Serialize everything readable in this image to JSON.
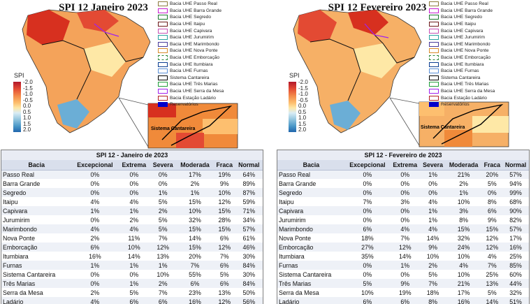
{
  "legend_items": [
    {
      "label": "Bacia UHE Passo Real",
      "color": "#8c7a3d"
    },
    {
      "label": "Bacia UHE Barra Grande",
      "color": "#c71ccf"
    },
    {
      "label": "Bacia UHE Segredo",
      "color": "#1b7a2f"
    },
    {
      "label": "Bacia UHE Itaipu",
      "color": "#6d1a1a"
    },
    {
      "label": "Bacia UHE Capivara",
      "color": "#c64fb4"
    },
    {
      "label": "Bacia UHE Jurumirim",
      "color": "#2aa3a0"
    },
    {
      "label": "Bacia UHE Marimbondo",
      "color": "#4a3b9a"
    },
    {
      "label": "Bacia UHE Nova Ponte",
      "color": "#d98c2b"
    },
    {
      "label": "Bacia UHE Emborcação",
      "color": "#2c8a3a"
    },
    {
      "label": "Bacia UHE Itumbiara",
      "color": "#0b3d91"
    },
    {
      "label": "Bacia UHE Furnas",
      "color": "#5a8fd6"
    },
    {
      "label": "Sistema Cantareira",
      "color": "#000000"
    },
    {
      "label": "Bacia UHE Três Marias",
      "color": "#1f9e3a"
    },
    {
      "label": "Bacia UHE Serra da Mesa",
      "color": "#a020f0"
    },
    {
      "label": "Bacia Estação Ladário",
      "color": "#b22222"
    },
    {
      "label": "Reservatórios",
      "color": "#0000cc"
    }
  ],
  "spi_scale": {
    "label": "SPI",
    "ticks": [
      "-2.0",
      "-1.5",
      "-1.0",
      "-0.5",
      "0.0",
      "0.5",
      "1.0",
      "1.5",
      "2.0"
    ]
  },
  "inset_label": "Sistema Cantareira",
  "column_headers": [
    "Bacia",
    "Excepcional",
    "Extrema",
    "Severa",
    "Moderada",
    "Fraca",
    "Normal"
  ],
  "panels": [
    {
      "map_title": "SPI 12 Janeiro 2023",
      "table_title": "SPI 12 - Janeiro de 2023",
      "rows": [
        [
          "Passo Real",
          "0%",
          "0%",
          "0%",
          "17%",
          "19%",
          "64%"
        ],
        [
          "Barra Grande",
          "0%",
          "0%",
          "0%",
          "2%",
          "9%",
          "89%"
        ],
        [
          "Segredo",
          "0%",
          "0%",
          "1%",
          "1%",
          "10%",
          "87%"
        ],
        [
          "Itaipu",
          "4%",
          "4%",
          "5%",
          "15%",
          "12%",
          "59%"
        ],
        [
          "Capivara",
          "1%",
          "1%",
          "2%",
          "10%",
          "15%",
          "71%"
        ],
        [
          "Jurumirim",
          "0%",
          "2%",
          "5%",
          "32%",
          "28%",
          "34%"
        ],
        [
          "Marimbondo",
          "4%",
          "4%",
          "5%",
          "15%",
          "15%",
          "57%"
        ],
        [
          "Nova Ponte",
          "2%",
          "11%",
          "7%",
          "14%",
          "6%",
          "61%"
        ],
        [
          "Emborcação",
          "6%",
          "10%",
          "12%",
          "15%",
          "12%",
          "46%"
        ],
        [
          "Itumbiara",
          "16%",
          "14%",
          "13%",
          "20%",
          "7%",
          "30%"
        ],
        [
          "Furnas",
          "1%",
          "1%",
          "1%",
          "7%",
          "6%",
          "84%"
        ],
        [
          "Sistema Cantareira",
          "0%",
          "0%",
          "10%",
          "55%",
          "5%",
          "30%"
        ],
        [
          "Três Marias",
          "0%",
          "1%",
          "2%",
          "6%",
          "6%",
          "84%"
        ],
        [
          "Serra da Mesa",
          "2%",
          "5%",
          "7%",
          "23%",
          "13%",
          "50%"
        ],
        [
          "Ladário",
          "4%",
          "6%",
          "6%",
          "16%",
          "12%",
          "56%"
        ]
      ]
    },
    {
      "map_title": "SPI 12 Fevereiro 2023",
      "table_title": "SPI 12 - Fevereiro de 2023",
      "rows": [
        [
          "Passo Real",
          "0%",
          "0%",
          "1%",
          "21%",
          "20%",
          "57%"
        ],
        [
          "Barra Grande",
          "0%",
          "0%",
          "0%",
          "2%",
          "5%",
          "94%"
        ],
        [
          "Segredo",
          "0%",
          "0%",
          "0%",
          "1%",
          "0%",
          "99%"
        ],
        [
          "Itaipu",
          "7%",
          "3%",
          "4%",
          "10%",
          "8%",
          "68%"
        ],
        [
          "Capivara",
          "0%",
          "0%",
          "1%",
          "3%",
          "6%",
          "90%"
        ],
        [
          "Jurumirim",
          "0%",
          "0%",
          "1%",
          "8%",
          "9%",
          "82%"
        ],
        [
          "Marimbondo",
          "6%",
          "4%",
          "4%",
          "15%",
          "15%",
          "57%"
        ],
        [
          "Nova Ponte",
          "18%",
          "7%",
          "14%",
          "32%",
          "12%",
          "17%"
        ],
        [
          "Emborcação",
          "27%",
          "12%",
          "9%",
          "24%",
          "12%",
          "16%"
        ],
        [
          "Itumbiara",
          "35%",
          "14%",
          "10%",
          "10%",
          "4%",
          "25%"
        ],
        [
          "Furnas",
          "0%",
          "1%",
          "2%",
          "4%",
          "7%",
          "85%"
        ],
        [
          "Sistema Cantareira",
          "0%",
          "0%",
          "5%",
          "10%",
          "25%",
          "60%"
        ],
        [
          "Três Marias",
          "5%",
          "9%",
          "7%",
          "21%",
          "13%",
          "44%"
        ],
        [
          "Serra da Mesa",
          "10%",
          "19%",
          "18%",
          "17%",
          "5%",
          "32%"
        ],
        [
          "Ladário",
          "6%",
          "6%",
          "8%",
          "16%",
          "14%",
          "51%"
        ]
      ]
    }
  ]
}
